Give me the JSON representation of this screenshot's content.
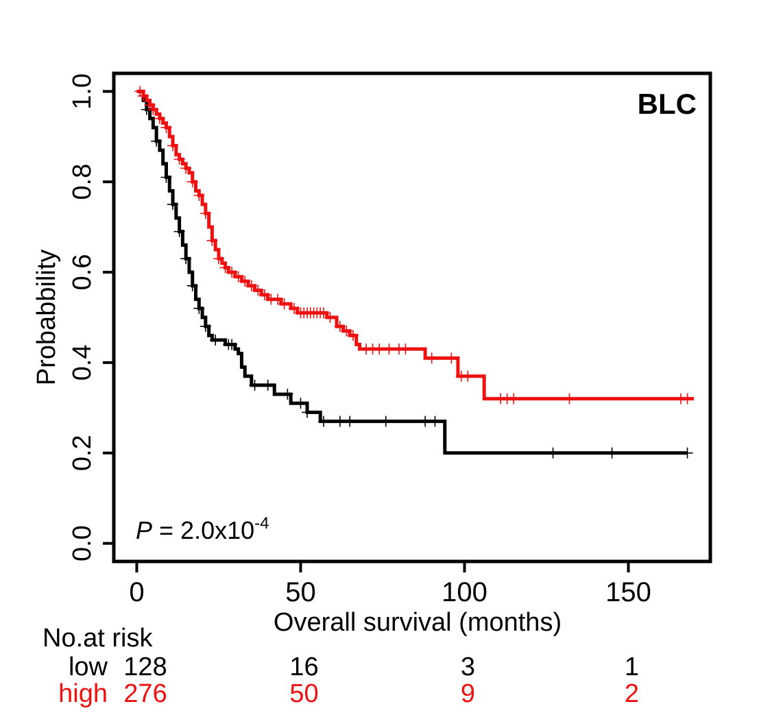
{
  "chart_data": {
    "type": "line",
    "subtype": "kaplan-meier",
    "panel_label": "BLC",
    "xlabel": "Overall survival (months)",
    "ylabel": "Probabbility",
    "xlim": [
      -7,
      175
    ],
    "ylim": [
      -0.04,
      1.04
    ],
    "x_ticks": [
      0,
      50,
      100,
      150
    ],
    "x_tick_labels": [
      "0",
      "50",
      "100",
      "150"
    ],
    "y_ticks": [
      0.0,
      0.2,
      0.4,
      0.6,
      0.8,
      1.0
    ],
    "y_tick_labels": [
      "0.0",
      "0.2",
      "0.4",
      "0.6",
      "0.8",
      "1.0"
    ],
    "annotation": {
      "p_label": "P",
      "p_eq": " = 2.0x10",
      "p_exp": "-4"
    },
    "colors": {
      "low": "#000000",
      "high": "#ee1111"
    },
    "series": [
      {
        "name": "low",
        "steps": [
          [
            0,
            1.0
          ],
          [
            2,
            0.98
          ],
          [
            3,
            0.96
          ],
          [
            4,
            0.94
          ],
          [
            5,
            0.92
          ],
          [
            6,
            0.89
          ],
          [
            7,
            0.87
          ],
          [
            8,
            0.84
          ],
          [
            9,
            0.81
          ],
          [
            10,
            0.78
          ],
          [
            11,
            0.75
          ],
          [
            12,
            0.72
          ],
          [
            13,
            0.69
          ],
          [
            14,
            0.66
          ],
          [
            15,
            0.63
          ],
          [
            16,
            0.6
          ],
          [
            17,
            0.57
          ],
          [
            18,
            0.54
          ],
          [
            19,
            0.52
          ],
          [
            20,
            0.5
          ],
          [
            21,
            0.48
          ],
          [
            22,
            0.46
          ],
          [
            23,
            0.45
          ],
          [
            27,
            0.44
          ],
          [
            30,
            0.43
          ],
          [
            31,
            0.42
          ],
          [
            32,
            0.39
          ],
          [
            33,
            0.37
          ],
          [
            35,
            0.35
          ],
          [
            42,
            0.33
          ],
          [
            47,
            0.31
          ],
          [
            52,
            0.29
          ],
          [
            56,
            0.27
          ],
          [
            94,
            0.2
          ]
        ],
        "end_x": 168,
        "censor_x": [
          3,
          6,
          9,
          11,
          13,
          15,
          17,
          19,
          21,
          24,
          28,
          29,
          36,
          40,
          46,
          50,
          52,
          57,
          62,
          65,
          76,
          88,
          91,
          127,
          145,
          168
        ]
      },
      {
        "name": "high",
        "steps": [
          [
            0,
            1.0
          ],
          [
            2,
            0.99
          ],
          [
            3,
            0.98
          ],
          [
            4,
            0.97
          ],
          [
            5,
            0.96
          ],
          [
            6,
            0.95
          ],
          [
            7,
            0.94
          ],
          [
            8,
            0.93
          ],
          [
            9,
            0.92
          ],
          [
            10,
            0.9
          ],
          [
            11,
            0.88
          ],
          [
            12,
            0.86
          ],
          [
            13,
            0.85
          ],
          [
            14,
            0.84
          ],
          [
            15,
            0.83
          ],
          [
            16,
            0.82
          ],
          [
            17,
            0.8
          ],
          [
            18,
            0.78
          ],
          [
            19,
            0.77
          ],
          [
            20,
            0.75
          ],
          [
            21,
            0.73
          ],
          [
            22,
            0.7
          ],
          [
            23,
            0.67
          ],
          [
            24,
            0.65
          ],
          [
            25,
            0.63
          ],
          [
            26,
            0.62
          ],
          [
            27,
            0.61
          ],
          [
            28,
            0.6
          ],
          [
            30,
            0.59
          ],
          [
            32,
            0.58
          ],
          [
            34,
            0.57
          ],
          [
            36,
            0.56
          ],
          [
            38,
            0.55
          ],
          [
            40,
            0.54
          ],
          [
            44,
            0.53
          ],
          [
            47,
            0.52
          ],
          [
            49,
            0.51
          ],
          [
            58,
            0.5
          ],
          [
            61,
            0.48
          ],
          [
            63,
            0.47
          ],
          [
            65,
            0.46
          ],
          [
            67,
            0.44
          ],
          [
            68,
            0.43
          ],
          [
            88,
            0.41
          ],
          [
            98,
            0.37
          ],
          [
            106,
            0.32
          ]
        ],
        "end_x": 170,
        "censor_x": [
          1,
          2,
          4,
          5,
          7,
          9,
          11,
          13,
          15,
          17,
          19,
          21,
          23,
          25,
          27,
          29,
          31,
          33,
          35,
          37,
          39,
          41,
          43,
          45,
          48,
          50,
          51,
          52,
          53,
          54,
          55,
          56,
          57,
          59,
          62,
          64,
          66,
          70,
          72,
          74,
          77,
          80,
          82,
          90,
          96,
          99,
          101,
          111,
          113,
          115,
          132,
          166,
          168
        ]
      }
    ],
    "risk_table": {
      "title": "No.at risk",
      "rows": [
        {
          "group": "low",
          "counts": [
            "128",
            "16",
            "3",
            "1"
          ]
        },
        {
          "group": "high",
          "counts": [
            "276",
            "50",
            "9",
            "2"
          ]
        }
      ]
    }
  }
}
